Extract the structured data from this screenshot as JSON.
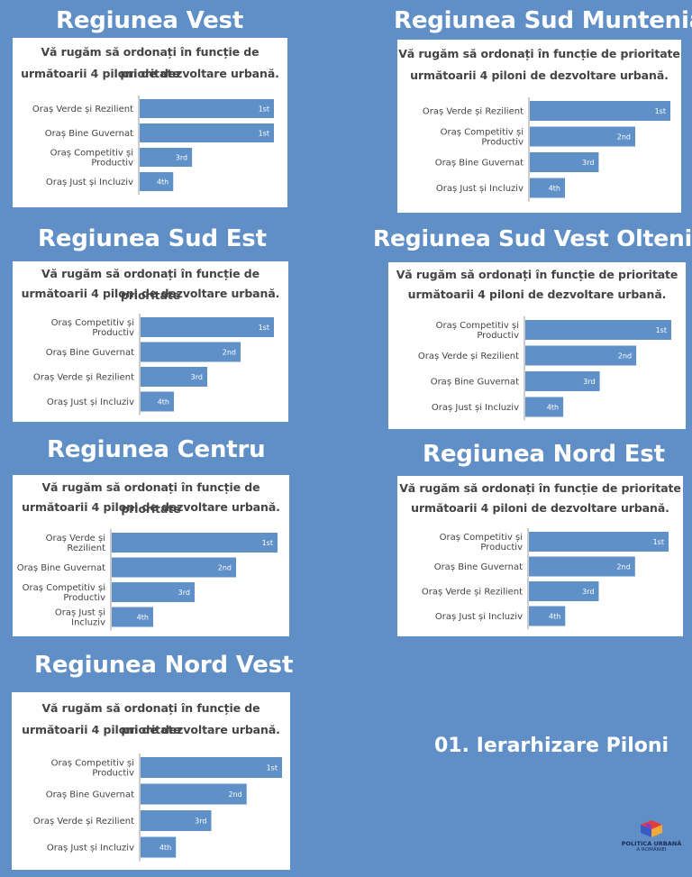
{
  "question": {
    "line1": "Vă rugăm să ordonați în funcție de prioritate",
    "line2": "următoarii 4 piloni de dezvoltare urbană."
  },
  "regions": [
    {
      "title": "Regiunea Vest",
      "chart_data": {
        "type": "bar",
        "orientation": "horizontal",
        "categories": [
          "Oraș Verde și Rezilient",
          "Oraș Bine Guvernat",
          "Oraș Competitiv și Productiv",
          "Oraș Just și Incluziv"
        ],
        "values": [
          1.0,
          1.0,
          0.39,
          0.25
        ],
        "rank_labels": [
          "1st",
          "1st",
          "3rd",
          "4th"
        ]
      }
    },
    {
      "title": "Regiunea Sud Muntenia",
      "chart_data": {
        "type": "bar",
        "orientation": "horizontal",
        "categories": [
          "Oraș Verde și Rezilient",
          "Oraș Competitiv și Productiv",
          "Oraș Bine Guvernat",
          "Oraș Just și Incluziv"
        ],
        "values": [
          1.0,
          0.75,
          0.49,
          0.25
        ],
        "rank_labels": [
          "1st",
          "2nd",
          "3rd",
          "4th"
        ]
      }
    },
    {
      "title": "Regiunea Sud Est",
      "chart_data": {
        "type": "bar",
        "orientation": "horizontal",
        "categories": [
          "Oraș Competitiv și Productiv",
          "Oraș Bine Guvernat",
          "Oraș Verde și Rezilient",
          "Oraș Just și Incluziv"
        ],
        "values": [
          1.0,
          0.75,
          0.5,
          0.25
        ],
        "rank_labels": [
          "1st",
          "2nd",
          "3rd",
          "4th"
        ]
      }
    },
    {
      "title": "Regiunea Sud Vest Oltenia",
      "chart_data": {
        "type": "bar",
        "orientation": "horizontal",
        "categories": [
          "Oraș Competitiv și Productiv",
          "Oraș Verde și Rezilient",
          "Oraș Bine Guvernat",
          "Oraș Just și Incluziv"
        ],
        "values": [
          1.0,
          0.76,
          0.51,
          0.26
        ],
        "rank_labels": [
          "1st",
          "2nd",
          "3rd",
          "4th"
        ]
      }
    },
    {
      "title": "Regiunea Centru",
      "chart_data": {
        "type": "bar",
        "orientation": "horizontal",
        "categories": [
          "Oraș Verde și Rezilient",
          "Oraș Bine Guvernat",
          "Oraș Competitiv și Productiv",
          "Oraș Just și Incluziv"
        ],
        "values": [
          1.0,
          0.75,
          0.5,
          0.25
        ],
        "rank_labels": [
          "1st",
          "2nd",
          "3rd",
          "4th"
        ]
      }
    },
    {
      "title": "Regiunea Nord Est",
      "chart_data": {
        "type": "bar",
        "orientation": "horizontal",
        "categories": [
          "Oraș Competitiv și Productiv",
          "Oraș Bine Guvernat",
          "Oraș Verde și Rezilient",
          "Oraș Just și Incluziv"
        ],
        "values": [
          1.0,
          0.76,
          0.5,
          0.26
        ],
        "rank_labels": [
          "1st",
          "2nd",
          "3rd",
          "4th"
        ]
      }
    },
    {
      "title": "Regiunea Nord Vest",
      "chart_data": {
        "type": "bar",
        "orientation": "horizontal",
        "categories": [
          "Oraș Competitiv și Productiv",
          "Oraș Bine Guvernat",
          "Oraș Verde și Rezilient",
          "Oraș Just și Incluziv"
        ],
        "values": [
          1.0,
          0.75,
          0.5,
          0.25
        ],
        "rank_labels": [
          "1st",
          "2nd",
          "3rd",
          "4th"
        ]
      }
    }
  ],
  "footer": {
    "title": "01. Ierarhizare Piloni"
  },
  "logo": {
    "line1": "POLITICA URBANĂ",
    "line2": "A ROMÂNIEI"
  },
  "colors": {
    "background": "#5f8fc6",
    "bar": "#6090c8",
    "panel": "#ffffff",
    "text": "#444444",
    "title": "#ffffff"
  }
}
